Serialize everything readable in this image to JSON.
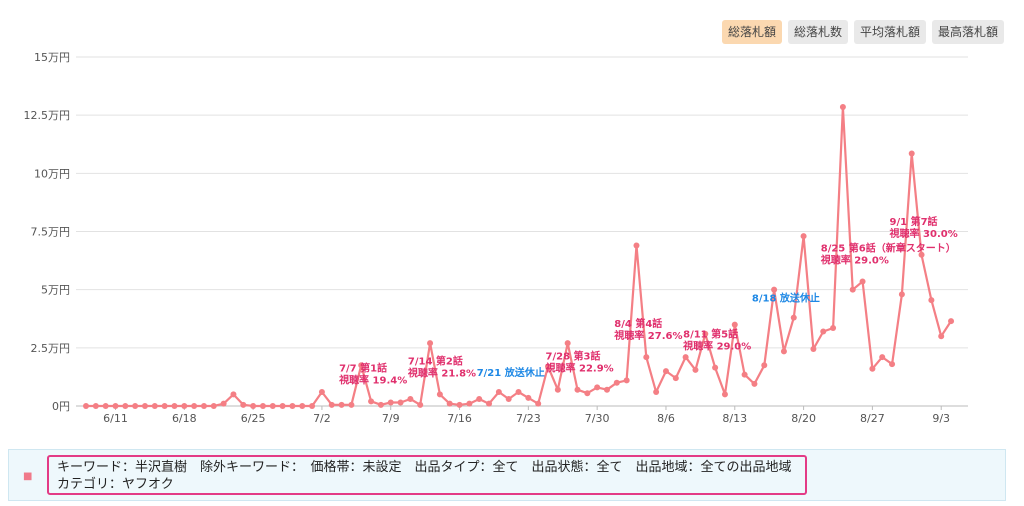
{
  "tabs": [
    {
      "label": "総落札額",
      "active": true
    },
    {
      "label": "総落札数",
      "active": false
    },
    {
      "label": "平均落札額",
      "active": false
    },
    {
      "label": "最高落札額",
      "active": false
    }
  ],
  "chart_data": {
    "type": "line",
    "y_ticks": [
      "0円",
      "2.5万円",
      "5万円",
      "7.5万円",
      "10万円",
      "12.5万円",
      "15万円"
    ],
    "ylim": [
      0,
      15
    ],
    "x_ticks": [
      "6/11",
      "6/18",
      "6/25",
      "7/2",
      "7/9",
      "7/16",
      "7/23",
      "7/30",
      "8/6",
      "8/13",
      "8/20",
      "8/27",
      "9/3"
    ],
    "series": [
      {
        "color": "#f47f85",
        "values": [
          0,
          0,
          0,
          0,
          0,
          0,
          0,
          0,
          0,
          0,
          0,
          0,
          0,
          0,
          0.1,
          0.5,
          0.05,
          0,
          0,
          0,
          0,
          0,
          0,
          0,
          0.6,
          0.05,
          0.05,
          0.05,
          1.75,
          0.2,
          0.05,
          0.15,
          0.15,
          0.3,
          0.05,
          2.7,
          0.5,
          0.1,
          0.05,
          0.1,
          0.3,
          0.1,
          0.6,
          0.3,
          0.6,
          0.35,
          0.1,
          1.7,
          0.7,
          2.7,
          0.7,
          0.55,
          0.8,
          0.7,
          1.0,
          1.1,
          6.9,
          2.1,
          0.6,
          1.5,
          1.2,
          2.1,
          1.55,
          3.1,
          1.65,
          0.5,
          3.5,
          1.35,
          0.95,
          1.75,
          5.0,
          2.35,
          3.8,
          7.3,
          2.45,
          3.2,
          3.35,
          12.85,
          5.0,
          5.35,
          1.6,
          2.1,
          1.8,
          4.8,
          10.85,
          6.5,
          4.55,
          3.0,
          3.65
        ],
        "first_x_date": "6/8"
      }
    ],
    "annotations": [
      {
        "x_date": "7/7",
        "line1": "7/7 第1話",
        "line2": "視聴率 19.4%",
        "color": "#e0306d"
      },
      {
        "x_date": "7/14",
        "line1": "7/14 第2話",
        "line2": "視聴率 21.8%",
        "color": "#e0306d"
      },
      {
        "x_date": "7/21",
        "line1": "7/21 放送休止",
        "line2": "",
        "color": "#1e88e5"
      },
      {
        "x_date": "7/28",
        "line1": "7/28 第3話",
        "line2": "視聴率 22.9%",
        "color": "#e0306d"
      },
      {
        "x_date": "8/4",
        "line1": "8/4 第4話",
        "line2": "視聴率 27.6%",
        "color": "#e0306d"
      },
      {
        "x_date": "8/11",
        "line1": "8/11 第5話",
        "line2": "視聴率 29.0%",
        "color": "#e0306d"
      },
      {
        "x_date": "8/18",
        "line1": "8/18 放送休止",
        "line2": "",
        "color": "#1e88e5"
      },
      {
        "x_date": "8/25",
        "line1": "8/25 第6話（新章スタート）",
        "line2": "視聴率 29.0%",
        "color": "#e0306d"
      },
      {
        "x_date": "9/1",
        "line1": "9/1 第7話",
        "line2": "視聴率 30.0%",
        "color": "#e0306d"
      }
    ]
  },
  "info": {
    "line1": "キーワード：半沢直樹　除外キーワード：　価格帯：未設定　出品タイプ：全て　出品状態：全て　出品地域：全ての出品地域",
    "line2": "カテゴリ：ヤフオク"
  }
}
